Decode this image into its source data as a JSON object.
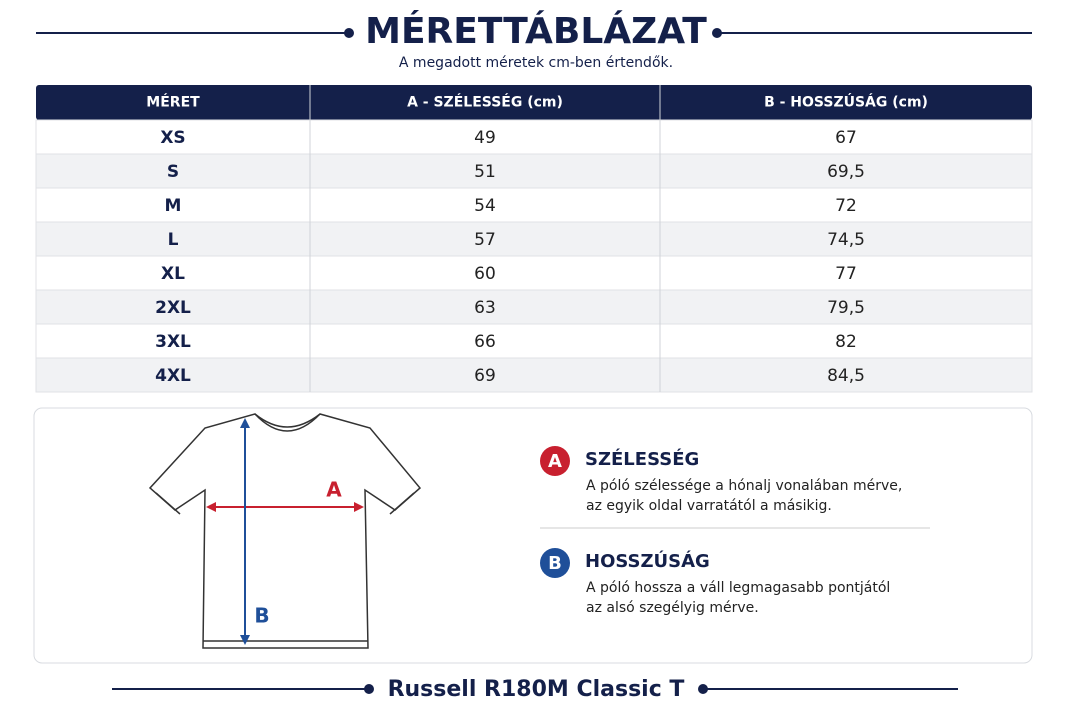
{
  "header": {
    "title": "MÉRETTÁBLÁZAT",
    "subtitle": "A megadott méretek cm-ben értendők."
  },
  "table": {
    "columns": [
      "MÉRET",
      "A - SZÉLESSÉG (cm)",
      "B - HOSSZÚSÁG (cm)"
    ],
    "rows": [
      [
        "XS",
        "49",
        "67"
      ],
      [
        "S",
        "51",
        "69,5"
      ],
      [
        "M",
        "54",
        "72"
      ],
      [
        "L",
        "57",
        "74,5"
      ],
      [
        "XL",
        "60",
        "77"
      ],
      [
        "2XL",
        "63",
        "79,5"
      ],
      [
        "3XL",
        "66",
        "82"
      ],
      [
        "4XL",
        "69",
        "84,5"
      ]
    ]
  },
  "legend": {
    "items": [
      {
        "letter": "A",
        "title": "SZÉLESSÉG",
        "lines": [
          "A póló szélessége a hónalj vonalában mérve,",
          "az egyik oldal varratától a másikig."
        ]
      },
      {
        "letter": "B",
        "title": "HOSSZÚSÁG",
        "lines": [
          "A póló hossza a váll legmagasabb pontjától",
          "az alsó szegélyig mérve."
        ]
      }
    ]
  },
  "footer": {
    "product": "Russell R180M Classic T"
  }
}
